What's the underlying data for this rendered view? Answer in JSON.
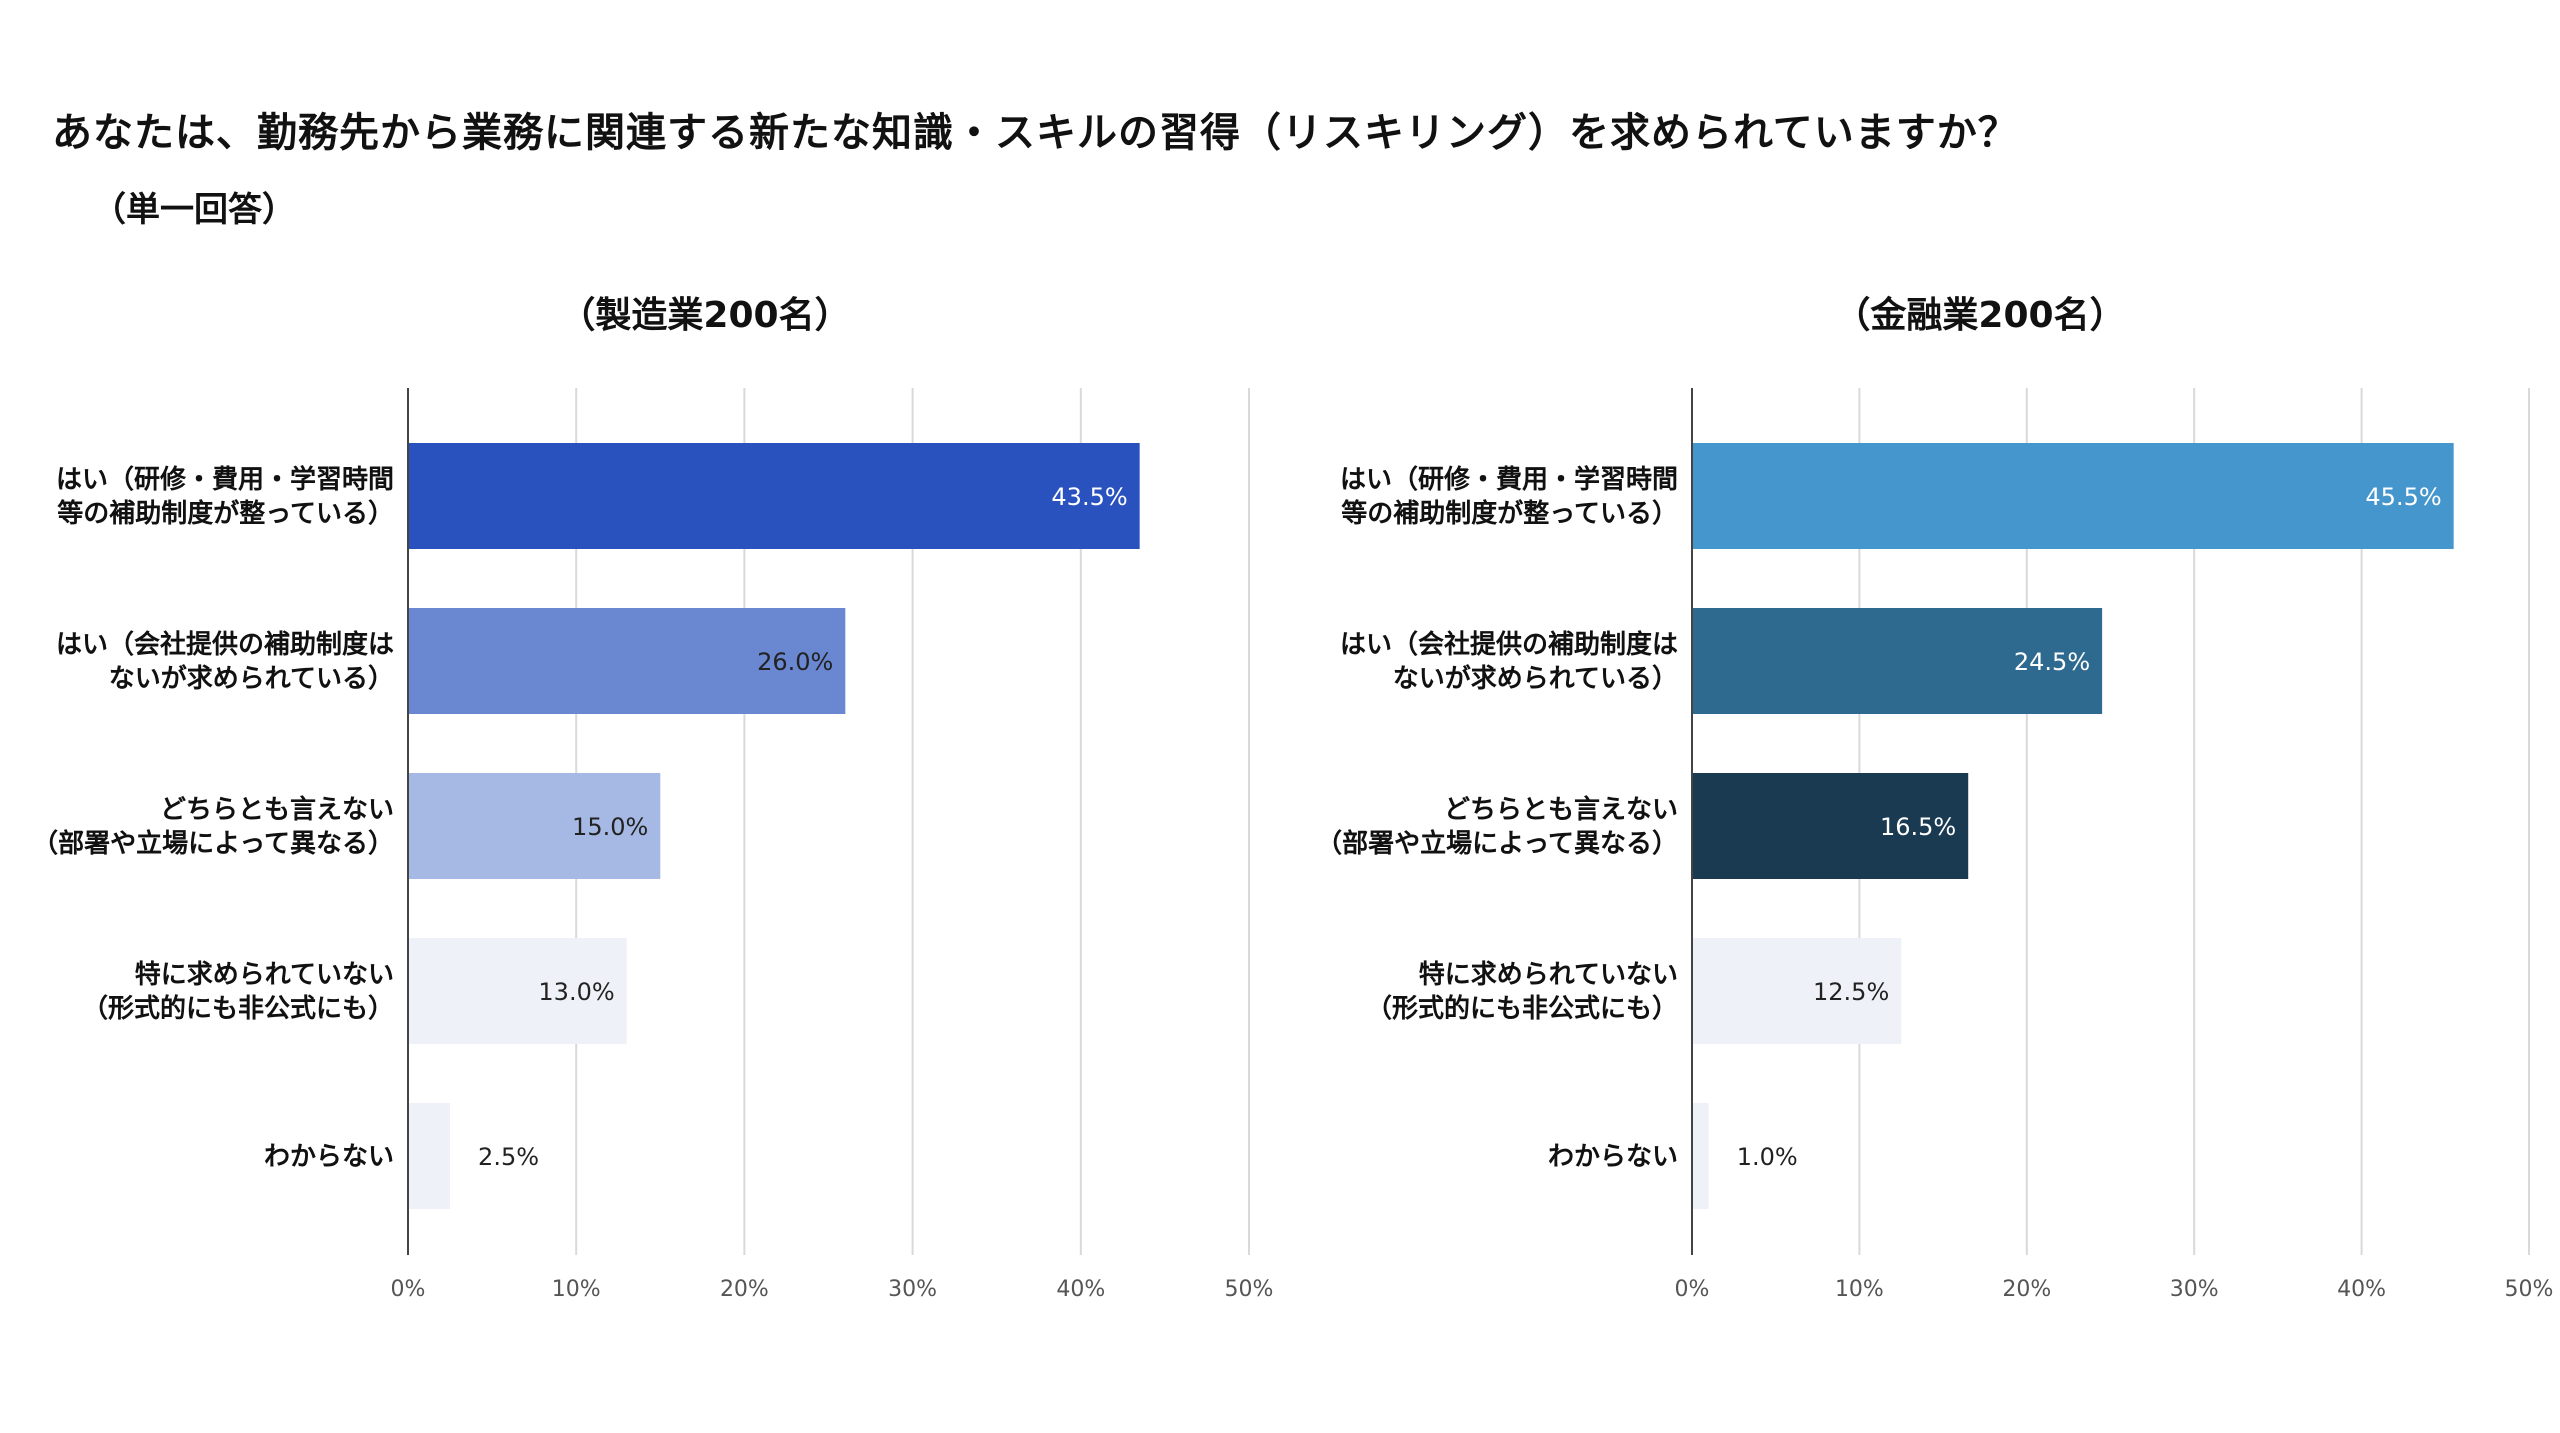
{
  "title": "あなたは、勤務先から業務に関連する新たな知識・スキルの習得（リスキリング）を求められていますか？",
  "subtitle": "（単一回答）",
  "chart_data": [
    {
      "type": "bar",
      "orientation": "horizontal",
      "title": "（製造業200名）",
      "categories": [
        [
          "はい（研修・費用・学習時間",
          "等の補助制度が整っている）"
        ],
        [
          "はい（会社提供の補助制度は",
          "ないが求められている）"
        ],
        [
          "どちらとも言えない",
          "（部署や立場によって異なる）"
        ],
        [
          "特に求められていない",
          "（形式的にも非公式にも）"
        ],
        [
          "わからない"
        ]
      ],
      "values": [
        43.5,
        26.0,
        15.0,
        13.0,
        2.5
      ],
      "value_labels": [
        "43.5%",
        "26.0%",
        "15.0%",
        "13.0%",
        "2.5%"
      ],
      "colors": [
        "#2a52be",
        "#6a87d1",
        "#a6b8e4",
        "#eef2f8",
        "#eef2f8"
      ],
      "label_colors": [
        "#ffffff",
        "#222222",
        "#222222",
        "#222222",
        "#222222"
      ],
      "xlim": [
        0,
        50
      ],
      "xticks": [
        0,
        10,
        20,
        30,
        40,
        50
      ],
      "xtick_labels": [
        "0%",
        "10%",
        "20%",
        "30%",
        "40%",
        "50%"
      ],
      "grid": true
    },
    {
      "type": "bar",
      "orientation": "horizontal",
      "title": "（金融業200名）",
      "categories": [
        [
          "はい（研修・費用・学習時間",
          "等の補助制度が整っている）"
        ],
        [
          "はい（会社提供の補助制度は",
          "ないが求められている）"
        ],
        [
          "どちらとも言えない",
          "（部署や立場によって異なる）"
        ],
        [
          "特に求められていない",
          "（形式的にも非公式にも）"
        ],
        [
          "わからない"
        ]
      ],
      "values": [
        45.5,
        24.5,
        16.5,
        12.5,
        1.0
      ],
      "value_labels": [
        "45.5%",
        "24.5%",
        "16.5%",
        "12.5%",
        "1.0%"
      ],
      "colors": [
        "#4496cc",
        "#2e6a8f",
        "#1a3a52",
        "#eef2f8",
        "#eef2f8"
      ],
      "label_colors": [
        "#ffffff",
        "#ffffff",
        "#ffffff",
        "#222222",
        "#222222"
      ],
      "xlim": [
        0,
        50
      ],
      "xticks": [
        0,
        10,
        20,
        30,
        40,
        50
      ],
      "xtick_labels": [
        "0%",
        "10%",
        "20%",
        "30%",
        "40%",
        "50%"
      ],
      "grid": true
    }
  ]
}
